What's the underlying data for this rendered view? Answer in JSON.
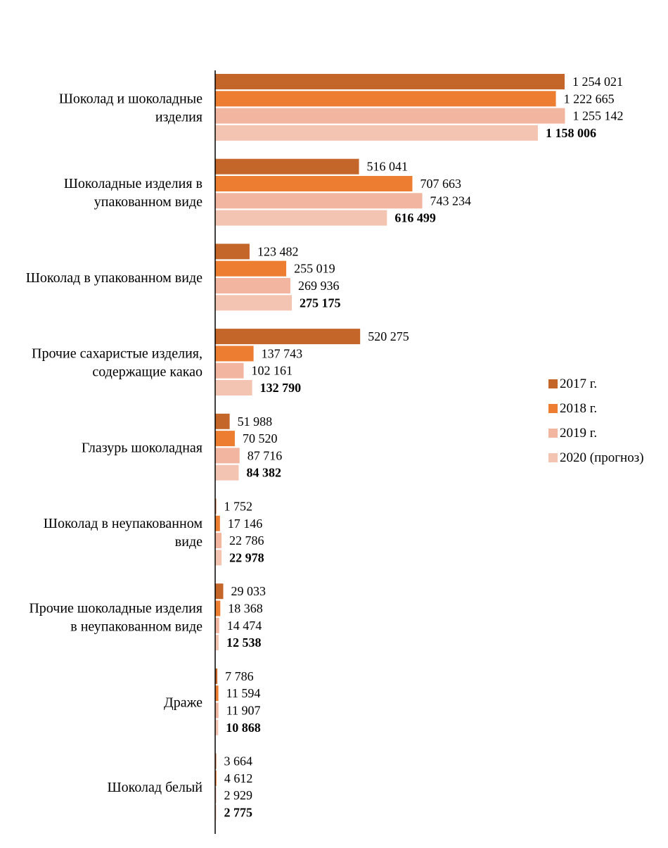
{
  "chart_data": {
    "type": "bar",
    "orientation": "horizontal",
    "title": "",
    "xlabel": "",
    "ylabel": "",
    "xlim": [
      0,
      1260000
    ],
    "grid": false,
    "legend_position": "right",
    "categories": [
      [
        "Шоколад и шоколадные",
        "изделия"
      ],
      [
        "Шоколадные изделия в",
        "упакованном виде"
      ],
      [
        "Шоколад в упакованном виде"
      ],
      [
        "Прочие сахаристые изделия,",
        "содержащие какао"
      ],
      [
        "Глазурь шоколадная"
      ],
      [
        "Шоколад в неупакованном",
        "виде"
      ],
      [
        "Прочие шоколадные изделия",
        "в неупакованном виде"
      ],
      [
        "Драже"
      ],
      [
        "Шоколад белый"
      ]
    ],
    "series": [
      {
        "name": "2017 г.",
        "color": "#C4652A",
        "values": [
          1254021,
          516041,
          123482,
          520275,
          51988,
          1752,
          29033,
          7786,
          3664
        ],
        "labels": [
          "1 254 021",
          "516 041",
          "123 482",
          "520 275",
          "51 988",
          "1 752",
          "29 033",
          "7 786",
          "3 664"
        ]
      },
      {
        "name": "2018 г.",
        "color": "#ED7D31",
        "values": [
          1222665,
          707663,
          255019,
          137743,
          70520,
          17146,
          18368,
          11594,
          4612
        ],
        "labels": [
          "1 222 665",
          "707 663",
          "255 019",
          "137 743",
          "70 520",
          "17 146",
          "18 368",
          "11 594",
          "4 612"
        ]
      },
      {
        "name": "2019 г.",
        "color": "#F2B6A0",
        "values": [
          1255142,
          743234,
          269936,
          102161,
          87716,
          22786,
          14474,
          11907,
          2929
        ],
        "labels": [
          "1 255 142",
          "743 234",
          "269 936",
          "102 161",
          "87 716",
          "22 786",
          "14 474",
          "11 907",
          "2 929"
        ]
      },
      {
        "name": "2020 (прогноз)",
        "color": "#F4C4B2",
        "values": [
          1158006,
          616499,
          275175,
          132790,
          84382,
          22978,
          12538,
          10868,
          2775
        ],
        "labels": [
          "1 158 006",
          "616 499",
          "275 175",
          "132 790",
          "84 382",
          "22 978",
          "12 538",
          "10 868",
          "2 775"
        ],
        "bold_labels": true
      }
    ]
  }
}
